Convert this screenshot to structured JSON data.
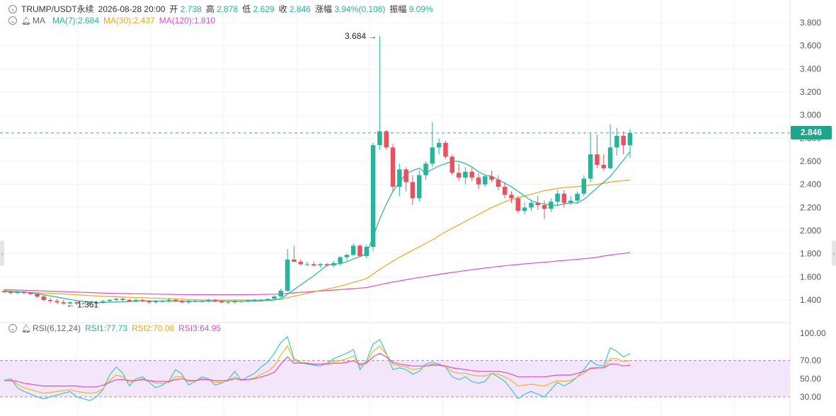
{
  "header": {
    "symbol": "TRUMP/USDT永续",
    "datetime": "2026-08-28 20:00",
    "open_label": "开",
    "open": "2.738",
    "high_label": "高",
    "high": "2.878",
    "low_label": "低",
    "low": "2.629",
    "close_label": "收",
    "close": "2.846",
    "change_label": "涨幅",
    "change": "3.94%(0.108)",
    "amp_label": "振幅",
    "amp": "9.09%"
  },
  "ma_legend": {
    "label": "MA",
    "ma7": "MA(7):2.684",
    "ma30": "MA(30):2.437",
    "ma120": "MA(120):1.810"
  },
  "rsi_legend": {
    "label": "RSI(6,12,24)",
    "rsi1": "RSI1:77.73",
    "rsi2": "RSI2:70.08",
    "rsi3": "RSI3:64.95"
  },
  "colors": {
    "up": "#26b49a",
    "down": "#e8515f",
    "ma7": "#26b49a",
    "ma30": "#e7a91b",
    "ma120": "#d552c8",
    "rsi1": "#3cc7c0",
    "rsi2": "#f0b429",
    "rsi3": "#d552c8"
  },
  "last_price_tag": "2.846",
  "max_annotation": "3.684",
  "min_annotation": "1.361",
  "chart_data": [
    {
      "type": "candlestick",
      "title": "",
      "ylim": [
        1.3,
        3.9
      ],
      "y_ticks": [
        "3.800",
        "3.600",
        "3.400",
        "3.200",
        "3.000",
        "2.800",
        "2.600",
        "2.400",
        "2.200",
        "2.000",
        "1.800",
        "1.600",
        "1.400"
      ],
      "last_price": 2.846,
      "candles": [
        [
          1.48,
          1.49,
          1.46,
          1.47
        ],
        [
          1.47,
          1.48,
          1.45,
          1.46
        ],
        [
          1.46,
          1.48,
          1.45,
          1.47
        ],
        [
          1.47,
          1.48,
          1.45,
          1.46
        ],
        [
          1.46,
          1.47,
          1.44,
          1.45
        ],
        [
          1.45,
          1.46,
          1.42,
          1.43
        ],
        [
          1.43,
          1.44,
          1.39,
          1.4
        ],
        [
          1.4,
          1.42,
          1.37,
          1.39
        ],
        [
          1.39,
          1.41,
          1.37,
          1.38
        ],
        [
          1.38,
          1.4,
          1.36,
          1.37
        ],
        [
          1.37,
          1.39,
          1.36,
          1.38
        ],
        [
          1.38,
          1.39,
          1.36,
          1.37
        ],
        [
          1.37,
          1.38,
          1.36,
          1.37
        ],
        [
          1.37,
          1.38,
          1.361,
          1.37
        ],
        [
          1.37,
          1.39,
          1.36,
          1.38
        ],
        [
          1.38,
          1.4,
          1.37,
          1.39
        ],
        [
          1.39,
          1.41,
          1.38,
          1.4
        ],
        [
          1.4,
          1.42,
          1.39,
          1.41
        ],
        [
          1.41,
          1.42,
          1.39,
          1.4
        ],
        [
          1.4,
          1.41,
          1.38,
          1.39
        ],
        [
          1.39,
          1.41,
          1.38,
          1.4
        ],
        [
          1.4,
          1.41,
          1.38,
          1.39
        ],
        [
          1.39,
          1.4,
          1.37,
          1.38
        ],
        [
          1.38,
          1.4,
          1.37,
          1.39
        ],
        [
          1.39,
          1.4,
          1.38,
          1.39
        ],
        [
          1.39,
          1.42,
          1.38,
          1.4
        ],
        [
          1.4,
          1.41,
          1.38,
          1.39
        ],
        [
          1.39,
          1.4,
          1.37,
          1.38
        ],
        [
          1.38,
          1.4,
          1.37,
          1.39
        ],
        [
          1.39,
          1.4,
          1.38,
          1.39
        ],
        [
          1.39,
          1.4,
          1.38,
          1.39
        ],
        [
          1.39,
          1.41,
          1.38,
          1.4
        ],
        [
          1.4,
          1.41,
          1.38,
          1.39
        ],
        [
          1.39,
          1.4,
          1.37,
          1.38
        ],
        [
          1.38,
          1.39,
          1.37,
          1.38
        ],
        [
          1.38,
          1.4,
          1.37,
          1.39
        ],
        [
          1.39,
          1.4,
          1.38,
          1.39
        ],
        [
          1.39,
          1.4,
          1.38,
          1.4
        ],
        [
          1.4,
          1.41,
          1.39,
          1.4
        ],
        [
          1.4,
          1.41,
          1.39,
          1.4
        ],
        [
          1.4,
          1.41,
          1.39,
          1.41
        ],
        [
          1.41,
          1.44,
          1.4,
          1.43
        ],
        [
          1.43,
          1.5,
          1.42,
          1.48
        ],
        [
          1.48,
          1.84,
          1.47,
          1.75
        ],
        [
          1.75,
          1.87,
          1.73,
          1.73
        ],
        [
          1.73,
          1.75,
          1.7,
          1.71
        ],
        [
          1.71,
          1.73,
          1.69,
          1.71
        ],
        [
          1.71,
          1.73,
          1.69,
          1.7
        ],
        [
          1.7,
          1.72,
          1.68,
          1.71
        ],
        [
          1.71,
          1.72,
          1.69,
          1.7
        ],
        [
          1.7,
          1.74,
          1.68,
          1.72
        ],
        [
          1.72,
          1.78,
          1.7,
          1.77
        ],
        [
          1.77,
          1.8,
          1.74,
          1.79
        ],
        [
          1.79,
          1.89,
          1.78,
          1.87
        ],
        [
          1.87,
          1.88,
          1.77,
          1.78
        ],
        [
          1.78,
          1.88,
          1.76,
          1.86
        ],
        [
          1.86,
          2.76,
          1.82,
          2.74
        ],
        [
          2.74,
          3.684,
          2.7,
          2.86
        ],
        [
          2.86,
          2.87,
          2.7,
          2.72
        ],
        [
          2.72,
          2.75,
          2.34,
          2.38
        ],
        [
          2.38,
          2.58,
          2.3,
          2.53
        ],
        [
          2.53,
          2.55,
          2.34,
          2.42
        ],
        [
          2.42,
          2.48,
          2.22,
          2.28
        ],
        [
          2.28,
          2.52,
          2.25,
          2.48
        ],
        [
          2.48,
          2.6,
          2.44,
          2.58
        ],
        [
          2.58,
          2.94,
          2.55,
          2.72
        ],
        [
          2.72,
          2.8,
          2.66,
          2.76
        ],
        [
          2.76,
          2.78,
          2.62,
          2.64
        ],
        [
          2.64,
          2.66,
          2.48,
          2.5
        ],
        [
          2.5,
          2.58,
          2.43,
          2.46
        ],
        [
          2.46,
          2.55,
          2.4,
          2.51
        ],
        [
          2.51,
          2.54,
          2.43,
          2.46
        ],
        [
          2.46,
          2.5,
          2.36,
          2.4
        ],
        [
          2.4,
          2.49,
          2.38,
          2.47
        ],
        [
          2.47,
          2.52,
          2.42,
          2.44
        ],
        [
          2.44,
          2.48,
          2.35,
          2.38
        ],
        [
          2.38,
          2.42,
          2.28,
          2.31
        ],
        [
          2.31,
          2.34,
          2.24,
          2.28
        ],
        [
          2.28,
          2.3,
          2.15,
          2.17
        ],
        [
          2.17,
          2.24,
          2.14,
          2.2
        ],
        [
          2.2,
          2.26,
          2.17,
          2.24
        ],
        [
          2.24,
          2.3,
          2.18,
          2.22
        ],
        [
          2.22,
          2.26,
          2.1,
          2.19
        ],
        [
          2.19,
          2.28,
          2.16,
          2.25
        ],
        [
          2.25,
          2.35,
          2.21,
          2.32
        ],
        [
          2.32,
          2.35,
          2.2,
          2.24
        ],
        [
          2.24,
          2.3,
          2.22,
          2.26
        ],
        [
          2.26,
          2.34,
          2.23,
          2.32
        ],
        [
          2.32,
          2.48,
          2.3,
          2.45
        ],
        [
          2.45,
          2.84,
          2.42,
          2.66
        ],
        [
          2.66,
          2.83,
          2.54,
          2.57
        ],
        [
          2.57,
          2.66,
          2.52,
          2.54
        ],
        [
          2.54,
          2.92,
          2.53,
          2.72
        ],
        [
          2.72,
          2.89,
          2.65,
          2.82
        ],
        [
          2.82,
          2.86,
          2.66,
          2.74
        ],
        [
          2.738,
          2.878,
          2.629,
          2.846
        ]
      ],
      "ma7": [
        1.48,
        1.475,
        1.472,
        1.468,
        1.462,
        1.455,
        1.445,
        1.435,
        1.425,
        1.415,
        1.405,
        1.395,
        1.388,
        1.382,
        1.378,
        1.378,
        1.38,
        1.382,
        1.385,
        1.387,
        1.39,
        1.392,
        1.392,
        1.39,
        1.39,
        1.39,
        1.39,
        1.39,
        1.39,
        1.39,
        1.39,
        1.39,
        1.39,
        1.39,
        1.39,
        1.39,
        1.388,
        1.39,
        1.39,
        1.392,
        1.395,
        1.4,
        1.41,
        1.45,
        1.49,
        1.53,
        1.57,
        1.61,
        1.655,
        1.7,
        1.71,
        1.715,
        1.73,
        1.755,
        1.775,
        1.8,
        1.95,
        2.1,
        2.23,
        2.34,
        2.42,
        2.49,
        2.52,
        2.54,
        2.5,
        2.53,
        2.56,
        2.58,
        2.6,
        2.6,
        2.58,
        2.55,
        2.51,
        2.48,
        2.47,
        2.44,
        2.41,
        2.38,
        2.34,
        2.3,
        2.26,
        2.24,
        2.23,
        2.22,
        2.22,
        2.23,
        2.24,
        2.24,
        2.27,
        2.32,
        2.37,
        2.42,
        2.47,
        2.54,
        2.61,
        2.684
      ],
      "ma30": [
        1.472,
        1.47,
        1.468,
        1.466,
        1.464,
        1.462,
        1.46,
        1.458,
        1.455,
        1.452,
        1.448,
        1.445,
        1.442,
        1.438,
        1.435,
        1.432,
        1.43,
        1.428,
        1.425,
        1.423,
        1.421,
        1.419,
        1.417,
        1.415,
        1.413,
        1.411,
        1.409,
        1.407,
        1.405,
        1.403,
        1.401,
        1.4,
        1.4,
        1.4,
        1.4,
        1.4,
        1.4,
        1.4,
        1.4,
        1.4,
        1.401,
        1.402,
        1.406,
        1.42,
        1.432,
        1.445,
        1.458,
        1.47,
        1.482,
        1.494,
        1.506,
        1.52,
        1.535,
        1.552,
        1.568,
        1.585,
        1.625,
        1.665,
        1.7,
        1.735,
        1.77,
        1.8,
        1.83,
        1.86,
        1.89,
        1.92,
        1.955,
        1.99,
        2.02,
        2.05,
        2.08,
        2.11,
        2.14,
        2.17,
        2.2,
        2.225,
        2.25,
        2.27,
        2.285,
        2.3,
        2.315,
        2.33,
        2.345,
        2.355,
        2.365,
        2.372,
        2.378,
        2.382,
        2.388,
        2.394,
        2.4,
        2.41,
        2.42,
        2.428,
        2.432,
        2.437
      ],
      "ma120": [
        1.49,
        1.488,
        1.486,
        1.484,
        1.482,
        1.48,
        1.478,
        1.476,
        1.474,
        1.472,
        1.47,
        1.468,
        1.466,
        1.464,
        1.462,
        1.46,
        1.458,
        1.457,
        1.456,
        1.455,
        1.454,
        1.453,
        1.452,
        1.451,
        1.45,
        1.449,
        1.448,
        1.447,
        1.446,
        1.445,
        1.445,
        1.445,
        1.445,
        1.445,
        1.445,
        1.445,
        1.445,
        1.446,
        1.447,
        1.448,
        1.449,
        1.45,
        1.452,
        1.457,
        1.462,
        1.466,
        1.47,
        1.474,
        1.478,
        1.482,
        1.486,
        1.49,
        1.494,
        1.498,
        1.502,
        1.507,
        1.52,
        1.532,
        1.544,
        1.555,
        1.565,
        1.575,
        1.585,
        1.594,
        1.603,
        1.612,
        1.621,
        1.63,
        1.638,
        1.646,
        1.654,
        1.662,
        1.669,
        1.676,
        1.683,
        1.69,
        1.696,
        1.702,
        1.707,
        1.712,
        1.717,
        1.722,
        1.727,
        1.732,
        1.737,
        1.742,
        1.747,
        1.752,
        1.757,
        1.762,
        1.77,
        1.78,
        1.788,
        1.796,
        1.803,
        1.81
      ]
    },
    {
      "type": "line",
      "title": "RSI(6,12,24)",
      "ylim": [
        25,
        105
      ],
      "y_ticks": [
        "100.00",
        "70.00",
        "50.00",
        "30.00"
      ],
      "band": [
        30,
        70
      ],
      "series": [
        {
          "name": "RSI1",
          "values": [
            48,
            50,
            40,
            36,
            33,
            30,
            28,
            30,
            32,
            34,
            36,
            30,
            28,
            26,
            30,
            38,
            54,
            63,
            56,
            42,
            50,
            52,
            46,
            40,
            43,
            47,
            60,
            55,
            43,
            47,
            52,
            50,
            43,
            45,
            49,
            58,
            48,
            52,
            56,
            63,
            68,
            78,
            90,
            96,
            72,
            68,
            66,
            65,
            64,
            67,
            72,
            75,
            78,
            82,
            60,
            70,
            88,
            93,
            78,
            60,
            62,
            60,
            55,
            58,
            66,
            68,
            66,
            63,
            52,
            49,
            52,
            47,
            45,
            47,
            56,
            52,
            47,
            38,
            28,
            33,
            36,
            33,
            30,
            38,
            46,
            42,
            46,
            52,
            60,
            70,
            65,
            64,
            84,
            80,
            74,
            77.73
          ]
        },
        {
          "name": "RSI2",
          "values": [
            48,
            48,
            44,
            40,
            38,
            36,
            34,
            35,
            36,
            37,
            38,
            36,
            35,
            34,
            35,
            39,
            48,
            54,
            52,
            46,
            48,
            50,
            48,
            45,
            45,
            46,
            52,
            52,
            47,
            48,
            50,
            49,
            46,
            46,
            48,
            52,
            48,
            49,
            51,
            55,
            58,
            64,
            76,
            86,
            70,
            68,
            67,
            66,
            66,
            67,
            69,
            70,
            72,
            75,
            64,
            68,
            80,
            86,
            77,
            66,
            64,
            63,
            60,
            61,
            64,
            66,
            65,
            63,
            58,
            56,
            56,
            54,
            53,
            53,
            56,
            55,
            52,
            48,
            42,
            43,
            44,
            43,
            42,
            45,
            48,
            47,
            48,
            52,
            56,
            62,
            62,
            62,
            72,
            72,
            69,
            70.08
          ]
        },
        {
          "name": "RSI3",
          "values": [
            48,
            48,
            47,
            45,
            44,
            43,
            42,
            42,
            42,
            42,
            42,
            42,
            41,
            41,
            41,
            43,
            46,
            49,
            49,
            48,
            48,
            49,
            48,
            47,
            47,
            47,
            49,
            50,
            48,
            48,
            49,
            49,
            48,
            48,
            48,
            50,
            49,
            49,
            50,
            52,
            54,
            57,
            66,
            74,
            67,
            67,
            67,
            66,
            66,
            66,
            67,
            67,
            68,
            70,
            66,
            67,
            74,
            78,
            74,
            68,
            66,
            65,
            64,
            64,
            64,
            65,
            65,
            64,
            62,
            61,
            60,
            59,
            58,
            58,
            58,
            58,
            57,
            55,
            52,
            52,
            52,
            52,
            52,
            53,
            54,
            54,
            54,
            56,
            58,
            61,
            62,
            62,
            66,
            66,
            64,
            64.95
          ]
        }
      ]
    }
  ]
}
